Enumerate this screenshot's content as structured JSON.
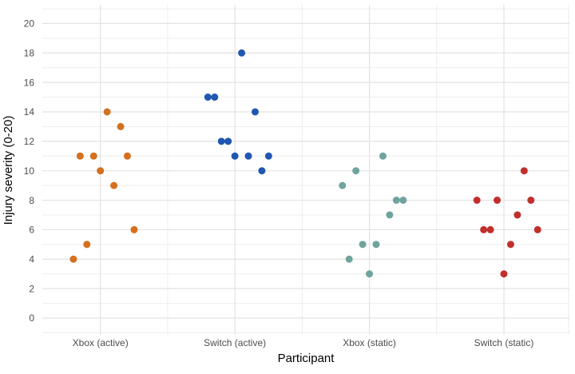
{
  "chart_data": {
    "type": "scatter",
    "subtype": "grouped strip plot (one dot per participant, fixed within-group horizontal offsets)",
    "title": "",
    "xlabel": "Participant",
    "ylabel": "Injury severity (0-20)",
    "ylim": [
      0,
      20
    ],
    "yticks": [
      0,
      2,
      4,
      6,
      8,
      10,
      12,
      14,
      16,
      18,
      20
    ],
    "grid": {
      "major": true,
      "minor": true
    },
    "legend": "none",
    "points_per_group": 10,
    "categories": [
      "Xbox (active)",
      "Switch (active)",
      "Xbox (static)",
      "Switch (static)"
    ],
    "series": [
      {
        "name": "Xbox (active)",
        "color": "#D4701E",
        "values": [
          4,
          11,
          5,
          11,
          10,
          14,
          9,
          13,
          11,
          6
        ]
      },
      {
        "name": "Switch (active)",
        "color": "#2057B0",
        "values": [
          15,
          15,
          12,
          12,
          11,
          18,
          11,
          14,
          10,
          11
        ]
      },
      {
        "name": "Xbox (static)",
        "color": "#6FA49E",
        "values": [
          9,
          4,
          10,
          5,
          3,
          5,
          11,
          7,
          8,
          8
        ]
      },
      {
        "name": "Switch (static)",
        "color": "#C12F2C",
        "values": [
          8,
          6,
          6,
          8,
          3,
          5,
          7,
          10,
          8,
          6
        ]
      }
    ],
    "values_note": "each group's values are ordered left-to-right by their jitter slot within the group"
  },
  "style": {
    "background": "#ffffff",
    "grid_major_color": "#e2e2e2",
    "grid_minor_color": "#ededed",
    "axis_text_color": "#4d4d4d",
    "axis_title_color": "#000000"
  }
}
